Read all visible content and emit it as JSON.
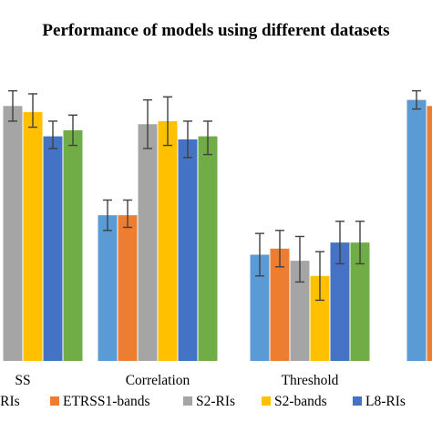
{
  "chart_data": {
    "type": "bar",
    "title": "Performance of models using different datasets",
    "categories": [
      "SS",
      "Correlation",
      "Threshold",
      ""
    ],
    "xlabel": "",
    "ylabel": "",
    "ylim": [
      0,
      1
    ],
    "grid": false,
    "legend_position": "bottom",
    "series": [
      {
        "name": "-RIs",
        "color": "#5b9bd5",
        "values": [
          null,
          0.48,
          0.35,
          0.86
        ],
        "err_low": [
          null,
          0.43,
          0.28,
          0.83
        ],
        "err_high": [
          null,
          0.53,
          0.42,
          0.89
        ]
      },
      {
        "name": "ETRSS1-bands",
        "color": "#ed7d31",
        "values": [
          null,
          0.48,
          0.37,
          0.84
        ],
        "err_low": [
          null,
          0.44,
          0.31,
          null
        ],
        "err_high": [
          null,
          0.53,
          0.43,
          null
        ]
      },
      {
        "name": "S2-RIs",
        "color": "#a5a5a5",
        "values": [
          0.84,
          0.78,
          0.33,
          null
        ],
        "err_low": [
          0.79,
          0.7,
          0.26,
          null
        ],
        "err_high": [
          0.89,
          0.86,
          0.41,
          null
        ]
      },
      {
        "name": "S2-bands",
        "color": "#ffc000",
        "values": [
          0.82,
          0.79,
          0.28,
          null
        ],
        "err_low": [
          0.77,
          0.71,
          0.2,
          null
        ],
        "err_high": [
          0.88,
          0.87,
          0.36,
          null
        ]
      },
      {
        "name": "L8-RIs",
        "color": "#4472c4",
        "values": [
          0.74,
          0.73,
          0.39,
          null
        ],
        "err_low": [
          0.7,
          0.67,
          0.32,
          null
        ],
        "err_high": [
          0.79,
          0.79,
          0.46,
          null
        ]
      },
      {
        "name": "",
        "color": "#70ad47",
        "values": [
          0.76,
          0.74,
          0.39,
          null
        ],
        "err_low": [
          0.71,
          0.68,
          0.32,
          null
        ],
        "err_high": [
          0.81,
          0.79,
          0.46,
          null
        ]
      }
    ]
  }
}
